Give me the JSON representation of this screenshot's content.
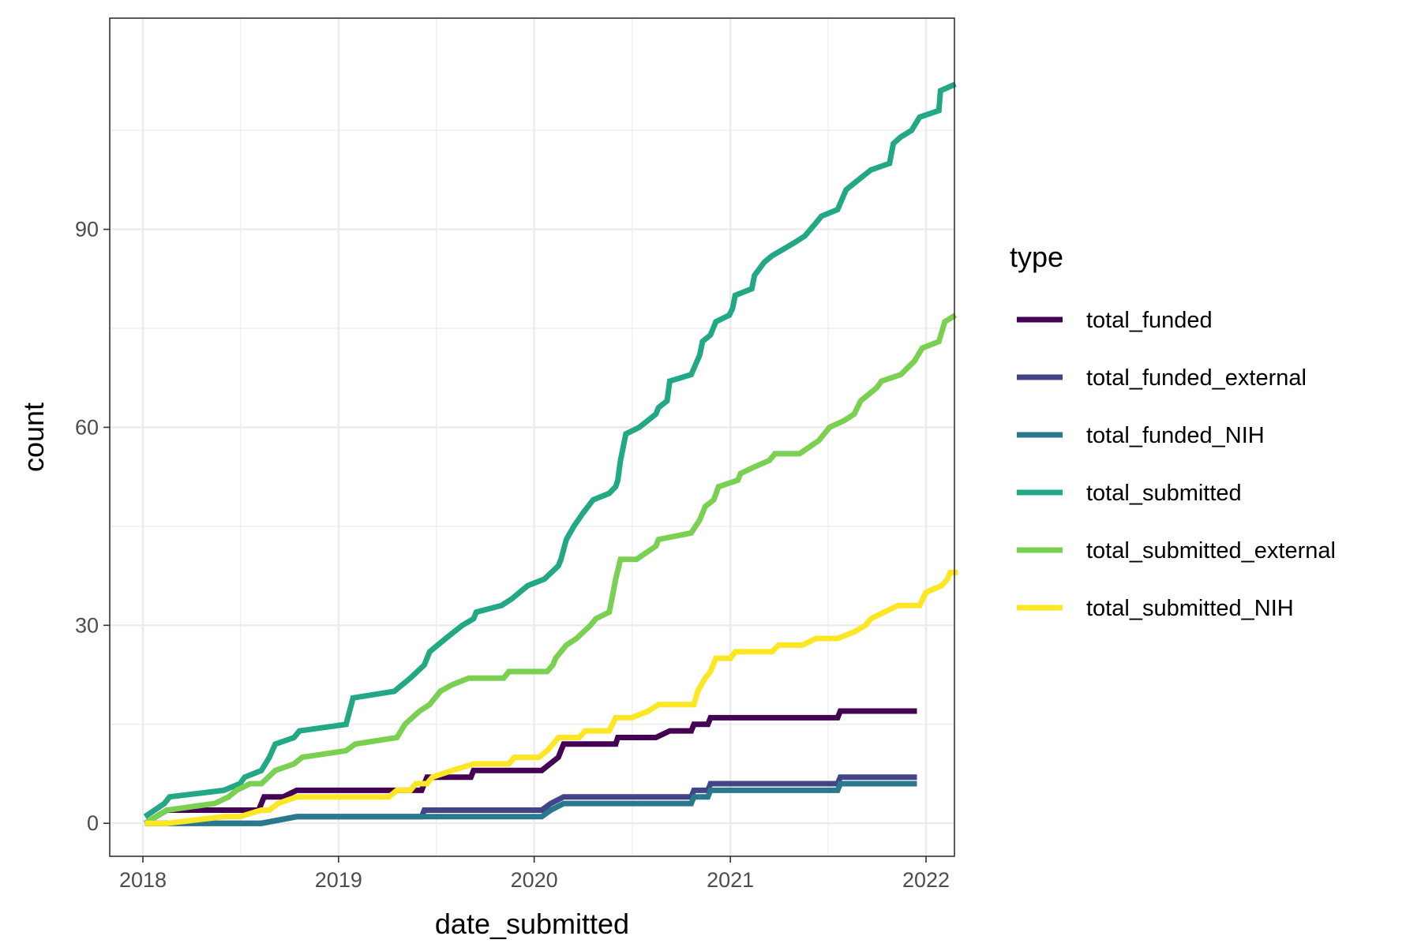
{
  "chart_data": {
    "type": "line",
    "title": "",
    "xlabel": "date_submitted",
    "ylabel": "count",
    "x_type": "date",
    "xlim": [
      "2018-01-01",
      "2022-01-01"
    ],
    "ylim": [
      -5,
      122
    ],
    "x_ticks": [
      {
        "value": "2018-01-01",
        "label": "2018"
      },
      {
        "value": "2019-01-01",
        "label": "2019"
      },
      {
        "value": "2020-01-01",
        "label": "2020"
      },
      {
        "value": "2021-01-01",
        "label": "2021"
      },
      {
        "value": "2022-01-01",
        "label": "2022"
      }
    ],
    "y_ticks": [
      {
        "value": 0,
        "label": "0"
      },
      {
        "value": 30,
        "label": "30"
      },
      {
        "value": 60,
        "label": "60"
      },
      {
        "value": 90,
        "label": "90"
      }
    ],
    "grid": true,
    "legend": {
      "title": "type",
      "position": "right"
    },
    "series": [
      {
        "name": "total_funded",
        "color": "#440154",
        "points": [
          [
            "2018-01-05",
            0
          ],
          [
            "2018-02-15",
            2
          ],
          [
            "2018-05-15",
            2
          ],
          [
            "2018-08-05",
            2
          ],
          [
            "2018-08-15",
            4
          ],
          [
            "2018-09-20",
            4
          ],
          [
            "2018-10-15",
            5
          ],
          [
            "2019-06-05",
            5
          ],
          [
            "2019-06-15",
            7
          ],
          [
            "2019-09-05",
            7
          ],
          [
            "2019-09-10",
            8
          ],
          [
            "2020-01-15",
            8
          ],
          [
            "2020-02-15",
            10
          ],
          [
            "2020-02-25",
            12
          ],
          [
            "2020-06-01",
            12
          ],
          [
            "2020-06-05",
            13
          ],
          [
            "2020-08-15",
            13
          ],
          [
            "2020-09-10",
            14
          ],
          [
            "2020-10-20",
            14
          ],
          [
            "2020-10-25",
            15
          ],
          [
            "2020-11-20",
            15
          ],
          [
            "2020-11-25",
            16
          ],
          [
            "2021-07-20",
            16
          ],
          [
            "2021-07-25",
            17
          ],
          [
            "2021-12-15",
            17
          ]
        ]
      },
      {
        "name": "total_funded_external",
        "color": "#414487",
        "points": [
          [
            "2018-01-05",
            0
          ],
          [
            "2018-08-10",
            0
          ],
          [
            "2018-10-15",
            1
          ],
          [
            "2019-06-05",
            1
          ],
          [
            "2019-06-10",
            2
          ],
          [
            "2020-01-15",
            2
          ],
          [
            "2020-02-01",
            3
          ],
          [
            "2020-02-25",
            4
          ],
          [
            "2020-10-20",
            4
          ],
          [
            "2020-10-25",
            5
          ],
          [
            "2020-11-20",
            5
          ],
          [
            "2020-11-25",
            6
          ],
          [
            "2021-07-20",
            6
          ],
          [
            "2021-07-25",
            7
          ],
          [
            "2021-12-15",
            7
          ]
        ]
      },
      {
        "name": "total_funded_NIH",
        "color": "#2A788E",
        "points": [
          [
            "2018-01-05",
            0
          ],
          [
            "2018-08-10",
            0
          ],
          [
            "2018-10-15",
            1
          ],
          [
            "2020-01-15",
            1
          ],
          [
            "2020-02-01",
            2
          ],
          [
            "2020-02-25",
            3
          ],
          [
            "2020-10-20",
            3
          ],
          [
            "2020-10-25",
            4
          ],
          [
            "2020-11-20",
            4
          ],
          [
            "2020-11-25",
            5
          ],
          [
            "2021-07-20",
            5
          ],
          [
            "2021-07-25",
            6
          ],
          [
            "2021-12-15",
            6
          ]
        ]
      },
      {
        "name": "total_submitted",
        "color": "#22A884",
        "points": [
          [
            "2018-01-05",
            1
          ],
          [
            "2018-02-10",
            3
          ],
          [
            "2018-02-20",
            4
          ],
          [
            "2018-06-01",
            5
          ],
          [
            "2018-07-01",
            6
          ],
          [
            "2018-07-10",
            7
          ],
          [
            "2018-08-10",
            8
          ],
          [
            "2018-08-25",
            10
          ],
          [
            "2018-09-05",
            12
          ],
          [
            "2018-10-10",
            13
          ],
          [
            "2018-10-20",
            14
          ],
          [
            "2019-01-15",
            15
          ],
          [
            "2019-01-25",
            18
          ],
          [
            "2019-01-28",
            19
          ],
          [
            "2019-04-15",
            20
          ],
          [
            "2019-05-15",
            22
          ],
          [
            "2019-06-10",
            24
          ],
          [
            "2019-06-20",
            26
          ],
          [
            "2019-07-20",
            28
          ],
          [
            "2019-08-20",
            30
          ],
          [
            "2019-09-10",
            31
          ],
          [
            "2019-09-15",
            32
          ],
          [
            "2019-11-01",
            33
          ],
          [
            "2019-11-20",
            34
          ],
          [
            "2019-12-20",
            36
          ],
          [
            "2020-01-20",
            37
          ],
          [
            "2020-02-15",
            39
          ],
          [
            "2020-02-20",
            40
          ],
          [
            "2020-03-01",
            43
          ],
          [
            "2020-03-15",
            45
          ],
          [
            "2020-04-01",
            47
          ],
          [
            "2020-04-20",
            49
          ],
          [
            "2020-05-20",
            50
          ],
          [
            "2020-06-01",
            51
          ],
          [
            "2020-06-05",
            52
          ],
          [
            "2020-06-10",
            55
          ],
          [
            "2020-06-15",
            57
          ],
          [
            "2020-06-20",
            59
          ],
          [
            "2020-07-15",
            60
          ],
          [
            "2020-08-15",
            62
          ],
          [
            "2020-08-20",
            63
          ],
          [
            "2020-09-05",
            64
          ],
          [
            "2020-09-10",
            67
          ],
          [
            "2020-10-20",
            68
          ],
          [
            "2020-11-05",
            71
          ],
          [
            "2020-11-10",
            73
          ],
          [
            "2020-11-25",
            74
          ],
          [
            "2020-12-05",
            76
          ],
          [
            "2020-12-30",
            77
          ],
          [
            "2021-01-05",
            78
          ],
          [
            "2021-01-10",
            80
          ],
          [
            "2021-02-10",
            81
          ],
          [
            "2021-02-15",
            83
          ],
          [
            "2021-03-05",
            85
          ],
          [
            "2021-03-20",
            86
          ],
          [
            "2021-04-10",
            87
          ],
          [
            "2021-05-01",
            88
          ],
          [
            "2021-05-20",
            89
          ],
          [
            "2021-06-10",
            91
          ],
          [
            "2021-06-20",
            92
          ],
          [
            "2021-07-20",
            93
          ],
          [
            "2021-08-05",
            96
          ],
          [
            "2021-08-20",
            97
          ],
          [
            "2021-09-20",
            99
          ],
          [
            "2021-10-25",
            100
          ],
          [
            "2021-11-01",
            103
          ],
          [
            "2021-11-15",
            104
          ],
          [
            "2021-12-05",
            105
          ],
          [
            "2021-12-20",
            107
          ],
          [
            "2022-01-25",
            108
          ],
          [
            "2022-01-28",
            111
          ],
          [
            "2022-02-25",
            112
          ]
        ]
      },
      {
        "name": "total_submitted_external",
        "color": "#7AD151",
        "points": [
          [
            "2018-01-05",
            0
          ],
          [
            "2018-02-15",
            2
          ],
          [
            "2018-05-15",
            3
          ],
          [
            "2018-06-10",
            4
          ],
          [
            "2018-06-25",
            5
          ],
          [
            "2018-07-20",
            6
          ],
          [
            "2018-08-10",
            6
          ],
          [
            "2018-09-05",
            8
          ],
          [
            "2018-10-10",
            9
          ],
          [
            "2018-10-25",
            10
          ],
          [
            "2019-01-15",
            11
          ],
          [
            "2019-02-01",
            12
          ],
          [
            "2019-04-20",
            13
          ],
          [
            "2019-05-05",
            15
          ],
          [
            "2019-06-01",
            17
          ],
          [
            "2019-06-20",
            18
          ],
          [
            "2019-07-10",
            20
          ],
          [
            "2019-08-01",
            21
          ],
          [
            "2019-09-01",
            22
          ],
          [
            "2019-11-05",
            22
          ],
          [
            "2019-11-15",
            23
          ],
          [
            "2020-01-25",
            23
          ],
          [
            "2020-02-05",
            24
          ],
          [
            "2020-02-10",
            25
          ],
          [
            "2020-03-01",
            27
          ],
          [
            "2020-03-20",
            28
          ],
          [
            "2020-04-15",
            30
          ],
          [
            "2020-04-25",
            31
          ],
          [
            "2020-05-20",
            32
          ],
          [
            "2020-05-25",
            34
          ],
          [
            "2020-06-01",
            37
          ],
          [
            "2020-06-10",
            40
          ],
          [
            "2020-07-10",
            40
          ],
          [
            "2020-08-15",
            42
          ],
          [
            "2020-08-20",
            43
          ],
          [
            "2020-10-20",
            44
          ],
          [
            "2020-11-05",
            46
          ],
          [
            "2020-11-15",
            48
          ],
          [
            "2020-12-01",
            49
          ],
          [
            "2020-12-10",
            51
          ],
          [
            "2021-01-15",
            52
          ],
          [
            "2021-01-20",
            53
          ],
          [
            "2021-02-15",
            54
          ],
          [
            "2021-03-15",
            55
          ],
          [
            "2021-03-25",
            56
          ],
          [
            "2021-05-10",
            56
          ],
          [
            "2021-06-15",
            58
          ],
          [
            "2021-07-05",
            60
          ],
          [
            "2021-08-01",
            61
          ],
          [
            "2021-08-20",
            62
          ],
          [
            "2021-09-01",
            64
          ],
          [
            "2021-10-01",
            66
          ],
          [
            "2021-10-10",
            67
          ],
          [
            "2021-11-15",
            68
          ],
          [
            "2021-12-10",
            70
          ],
          [
            "2021-12-25",
            72
          ],
          [
            "2022-01-25",
            73
          ],
          [
            "2022-02-05",
            76
          ],
          [
            "2022-02-25",
            77
          ]
        ]
      },
      {
        "name": "total_submitted_NIH",
        "color": "#FDE725",
        "points": [
          [
            "2018-01-05",
            0
          ],
          [
            "2018-02-15",
            0
          ],
          [
            "2018-06-01",
            1
          ],
          [
            "2018-07-01",
            1
          ],
          [
            "2018-08-10",
            2
          ],
          [
            "2018-08-25",
            2
          ],
          [
            "2018-09-10",
            3
          ],
          [
            "2018-10-15",
            4
          ],
          [
            "2019-04-05",
            4
          ],
          [
            "2019-04-20",
            5
          ],
          [
            "2019-05-15",
            5
          ],
          [
            "2019-05-25",
            6
          ],
          [
            "2019-06-15",
            6
          ],
          [
            "2019-06-25",
            7
          ],
          [
            "2019-08-01",
            8
          ],
          [
            "2019-09-10",
            9
          ],
          [
            "2019-11-15",
            9
          ],
          [
            "2019-11-25",
            10
          ],
          [
            "2020-01-10",
            10
          ],
          [
            "2020-01-25",
            11
          ],
          [
            "2020-02-05",
            12
          ],
          [
            "2020-02-15",
            13
          ],
          [
            "2020-03-25",
            13
          ],
          [
            "2020-04-05",
            14
          ],
          [
            "2020-05-20",
            14
          ],
          [
            "2020-06-01",
            16
          ],
          [
            "2020-07-01",
            16
          ],
          [
            "2020-08-01",
            17
          ],
          [
            "2020-08-20",
            18
          ],
          [
            "2020-10-25",
            18
          ],
          [
            "2020-11-01",
            20
          ],
          [
            "2020-11-15",
            22
          ],
          [
            "2020-11-25",
            23
          ],
          [
            "2020-12-05",
            25
          ],
          [
            "2021-01-01",
            25
          ],
          [
            "2021-01-10",
            26
          ],
          [
            "2021-03-20",
            26
          ],
          [
            "2021-04-01",
            27
          ],
          [
            "2021-05-15",
            27
          ],
          [
            "2021-06-10",
            28
          ],
          [
            "2021-07-20",
            28
          ],
          [
            "2021-08-20",
            29
          ],
          [
            "2021-09-10",
            30
          ],
          [
            "2021-09-20",
            31
          ],
          [
            "2021-10-15",
            32
          ],
          [
            "2021-11-10",
            33
          ],
          [
            "2021-12-20",
            33
          ],
          [
            "2022-01-01",
            35
          ],
          [
            "2022-01-30",
            36
          ],
          [
            "2022-02-10",
            37
          ],
          [
            "2022-02-15",
            38
          ],
          [
            "2022-03-01",
            38
          ]
        ]
      }
    ]
  }
}
